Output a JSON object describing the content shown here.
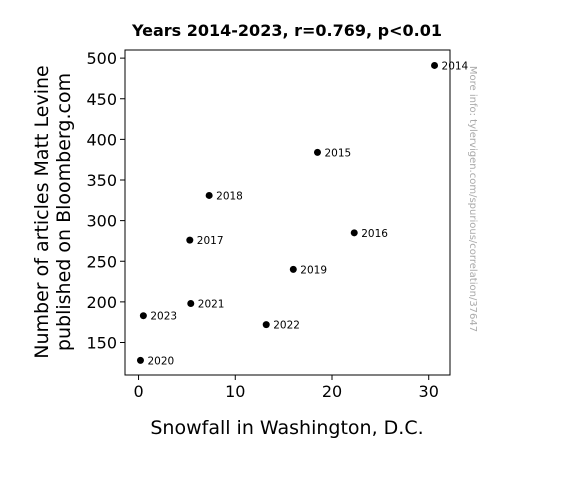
{
  "chart_data": {
    "type": "scatter",
    "title": "Years 2014-2023, r=0.769, p<0.01",
    "xlabel": "Snowfall in Washington, D.C.",
    "ylabel_lines": [
      "Number of articles Matt Levine",
      "published on Bloomberg.com"
    ],
    "xlim": [
      -1.4,
      32.2
    ],
    "ylim": [
      110,
      510
    ],
    "xticks": [
      0,
      10,
      20,
      30
    ],
    "yticks": [
      150,
      200,
      250,
      300,
      350,
      400,
      450,
      500
    ],
    "grid": false,
    "points": [
      {
        "label": "2014",
        "x": 30.6,
        "y": 491
      },
      {
        "label": "2015",
        "x": 18.5,
        "y": 384
      },
      {
        "label": "2016",
        "x": 22.3,
        "y": 285
      },
      {
        "label": "2017",
        "x": 5.3,
        "y": 276
      },
      {
        "label": "2018",
        "x": 7.3,
        "y": 331
      },
      {
        "label": "2019",
        "x": 16.0,
        "y": 240
      },
      {
        "label": "2020",
        "x": 0.2,
        "y": 128
      },
      {
        "label": "2021",
        "x": 5.4,
        "y": 198
      },
      {
        "label": "2022",
        "x": 13.2,
        "y": 172
      },
      {
        "label": "2023",
        "x": 0.5,
        "y": 183
      }
    ],
    "point_color": "#000000"
  },
  "watermark": "More info: tylervigen.com/spurious/correlation/37647"
}
